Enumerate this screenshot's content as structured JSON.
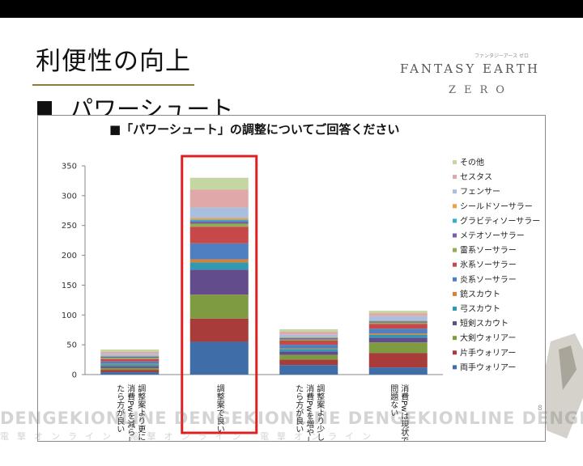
{
  "slide": {
    "title": "利便性の向上",
    "bullet": "パワーシュート",
    "logo_main": "FANTASY EARTH",
    "logo_sub": "ZERO",
    "logo_tag": "ファンタジーアース ゼロ",
    "page_number": "8",
    "watermark_text": "DENGEKIONLINE DENGEKIONLINE DENGEKIONLINE DENGEK",
    "watermark_sub": "電撃オンライン 電撃オンライン 電撃オンライン"
  },
  "colors": {
    "highlight_box": "#e02020",
    "series": [
      "#3f6da8",
      "#a83c3a",
      "#7f9b41",
      "#634c8c",
      "#2f9ab2",
      "#df7f2c",
      "#4f7fc1",
      "#c64848",
      "#8fb04f",
      "#7a60a8",
      "#37b0c6",
      "#f1a046",
      "#a9bfe0",
      "#e0a8a8",
      "#c4d6a2"
    ]
  },
  "chart_data": {
    "type": "bar",
    "stacked": true,
    "title": "■「パワーシュート」の調整についてご回答ください",
    "categories": [
      "調整案より更に消費Pwを減らしたら方が良い",
      "調整案で良い",
      "調整案より少し消費Pwを増やしたら方が良い",
      "消費Pwは現状で問題ない"
    ],
    "category_lines": [
      [
        "調整案より更に",
        "消費Pwを減らし",
        "たら方が良い"
      ],
      [
        "調整案で良い"
      ],
      [
        "調整案より少し",
        "消費Pwを増やし",
        "たら方が良い"
      ],
      [
        "消費Pwは現状で",
        "問題ない"
      ]
    ],
    "ylim": [
      0,
      350
    ],
    "yticks": [
      0,
      50,
      100,
      150,
      200,
      250,
      300,
      350
    ],
    "grid": false,
    "legend_position": "right",
    "highlight_category": 1,
    "series": [
      {
        "name": "両手ウォリアー",
        "values": [
          4,
          55,
          16,
          12
        ]
      },
      {
        "name": "片手ウォリアー",
        "values": [
          4,
          39,
          9,
          24
        ]
      },
      {
        "name": "大剣ウォリアー",
        "values": [
          3,
          40,
          8,
          18
        ]
      },
      {
        "name": "短剣スカウト",
        "values": [
          3,
          42,
          6,
          8
        ]
      },
      {
        "name": "弓スカウト",
        "values": [
          3,
          12,
          4,
          5
        ]
      },
      {
        "name": "銃スカウト",
        "values": [
          1,
          5,
          1,
          2
        ]
      },
      {
        "name": "炎系ソーサラー",
        "values": [
          4,
          27,
          6,
          8
        ]
      },
      {
        "name": "氷系ソーサラー",
        "values": [
          4,
          28,
          7,
          8
        ]
      },
      {
        "name": "雷系ソーサラー",
        "values": [
          2,
          5,
          2,
          2
        ]
      },
      {
        "name": "メテオソーサラー",
        "values": [
          2,
          4,
          2,
          2
        ]
      },
      {
        "name": "グラビティソーサラー",
        "values": [
          1,
          3,
          1,
          1
        ]
      },
      {
        "name": "シールドソーサラー",
        "values": [
          1,
          3,
          1,
          1
        ]
      },
      {
        "name": "フェンサー",
        "values": [
          3,
          17,
          4,
          7
        ]
      },
      {
        "name": "セスタス",
        "values": [
          3,
          30,
          5,
          5
        ]
      },
      {
        "name": "その他",
        "values": [
          4,
          20,
          4,
          4
        ]
      }
    ]
  }
}
